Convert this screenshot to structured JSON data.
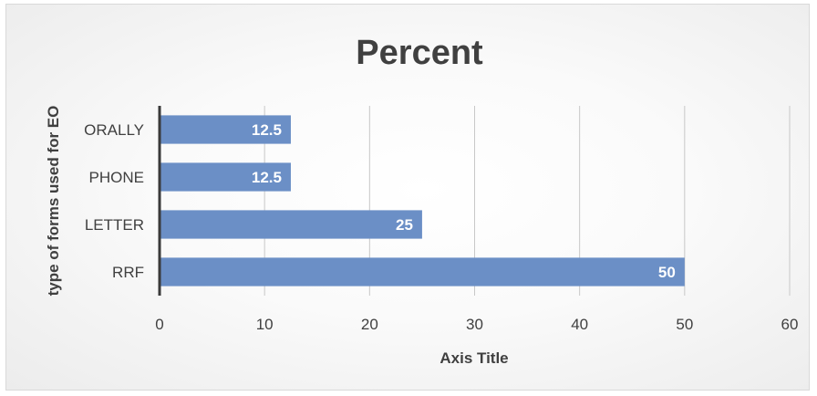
{
  "chart_data": {
    "type": "bar",
    "orientation": "horizontal",
    "title": "Percent",
    "xlabel": "Axis Title",
    "ylabel": "type of forms used for EO",
    "categories": [
      "ORALLY",
      "PHONE",
      "LETTER",
      "RRF"
    ],
    "values": [
      12.5,
      12.5,
      25,
      50
    ],
    "data_labels": [
      "12.5",
      "12.5",
      "25",
      "50"
    ],
    "xlim": [
      0,
      60
    ],
    "x_ticks": [
      "0",
      "10",
      "20",
      "30",
      "40",
      "50",
      "60"
    ],
    "grid": "vertical major gridlines",
    "legend": "none",
    "bar_color": "#6b8fc6"
  }
}
